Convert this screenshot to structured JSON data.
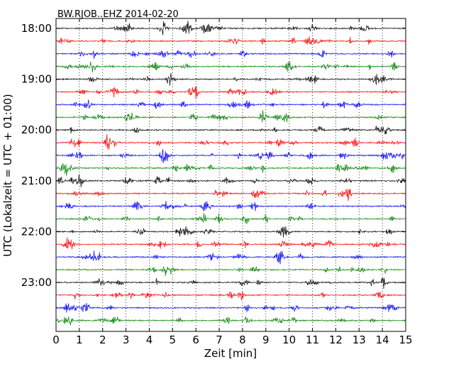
{
  "chart_data": {
    "type": "line",
    "title": "BW.RJOB..EHZ 2014-02-20",
    "xlabel": "Zeit  [min]",
    "ylabel": "UTC (Lokalzeit = UTC + 01:00)",
    "xlim": [
      0,
      15
    ],
    "x_ticks": [
      0,
      1,
      2,
      3,
      4,
      5,
      6,
      7,
      8,
      9,
      10,
      11,
      12,
      13,
      14,
      15
    ],
    "y_tick_labels": [
      "18:00",
      "19:00",
      "20:00",
      "21:00",
      "22:00",
      "23:00"
    ],
    "traces_per_hour": 4,
    "num_traces": 24,
    "trace_colors": [
      "#000000",
      "#ff0000",
      "#0000ff",
      "#007f00"
    ],
    "grid": "vertical-dotted"
  }
}
